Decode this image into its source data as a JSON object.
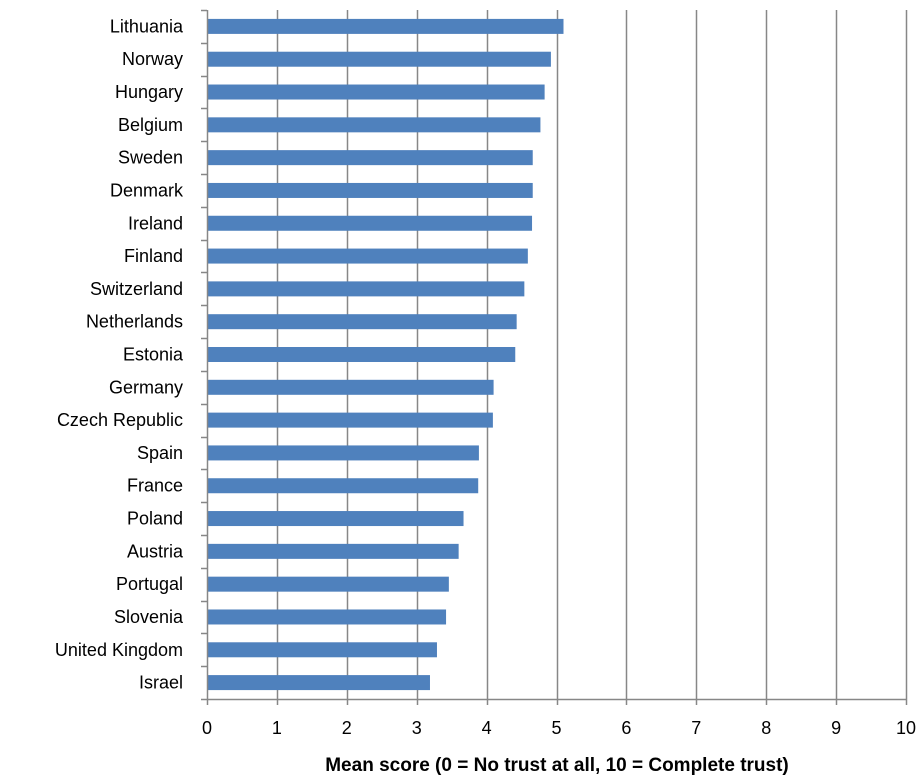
{
  "chart_data": {
    "type": "bar",
    "orientation": "horizontal",
    "categories": [
      "Lithuania",
      "Norway",
      "Hungary",
      "Belgium",
      "Sweden",
      "Denmark",
      "Ireland",
      "Finland",
      "Switzerland",
      "Netherlands",
      "Estonia",
      "Germany",
      "Czech Republic",
      "Spain",
      "France",
      "Poland",
      "Austria",
      "Portugal",
      "Slovenia",
      "United Kingdom",
      "Israel"
    ],
    "values": [
      5.1,
      4.92,
      4.83,
      4.77,
      4.66,
      4.66,
      4.65,
      4.59,
      4.54,
      4.43,
      4.41,
      4.1,
      4.09,
      3.89,
      3.88,
      3.67,
      3.6,
      3.46,
      3.42,
      3.29,
      3.19
    ],
    "title": "",
    "xlabel": "Mean score (0 = No trust at all, 10 = Complete trust)",
    "ylabel": "",
    "xlim": [
      0,
      10
    ],
    "xticks": [
      "0",
      "1",
      "2",
      "3",
      "4",
      "5",
      "6",
      "7",
      "8",
      "9",
      "10"
    ],
    "grid": "vertical",
    "legend": "none",
    "bar_color": "#4f81bd",
    "grid_color": "#878787"
  }
}
